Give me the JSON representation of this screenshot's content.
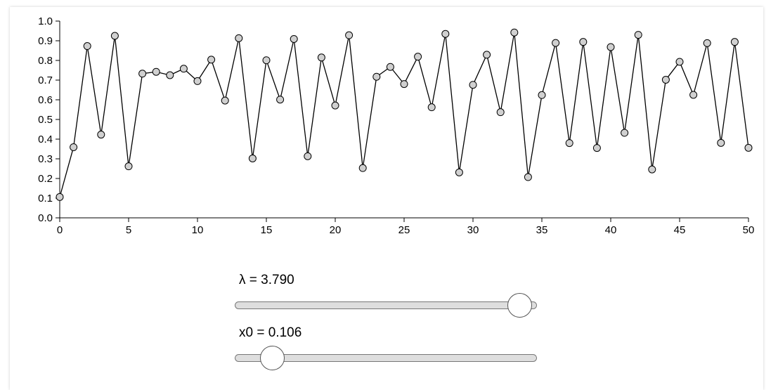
{
  "chart_data": {
    "type": "line",
    "markers": true,
    "x": [
      0,
      1,
      2,
      3,
      4,
      5,
      6,
      7,
      8,
      9,
      10,
      11,
      12,
      13,
      14,
      15,
      16,
      17,
      18,
      19,
      20,
      21,
      22,
      23,
      24,
      25,
      26,
      27,
      28,
      29,
      30,
      31,
      32,
      33,
      34,
      35,
      36,
      37,
      38,
      39,
      40,
      41,
      42,
      43,
      44,
      45,
      46,
      47,
      48,
      49,
      50
    ],
    "values": [
      0.106,
      0.359,
      0.873,
      0.423,
      0.925,
      0.262,
      0.733,
      0.742,
      0.725,
      0.758,
      0.695,
      0.804,
      0.596,
      0.913,
      0.302,
      0.801,
      0.601,
      0.909,
      0.313,
      0.815,
      0.571,
      0.928,
      0.253,
      0.717,
      0.767,
      0.68,
      0.819,
      0.562,
      0.935,
      0.231,
      0.676,
      0.829,
      0.537,
      0.942,
      0.207,
      0.624,
      0.889,
      0.38,
      0.894,
      0.355,
      0.868,
      0.432,
      0.93,
      0.246,
      0.702,
      0.793,
      0.625,
      0.888,
      0.381,
      0.894,
      0.356
    ],
    "xlim": [
      0,
      50
    ],
    "ylim": [
      0,
      1.0
    ],
    "xticks": [
      "0",
      "5",
      "10",
      "15",
      "20",
      "25",
      "30",
      "35",
      "40",
      "45",
      "50"
    ],
    "yticks": [
      "0.0",
      "0.1",
      "0.2",
      "0.3",
      "0.4",
      "0.5",
      "0.6",
      "0.7",
      "0.8",
      "0.9",
      "1.0"
    ],
    "grid": false,
    "marker_color": "#d0d0d0",
    "line_color": "#000000"
  },
  "controls": {
    "lambda": {
      "label": "λ = 3.790",
      "value": 3.79,
      "min": 0,
      "max": 4
    },
    "x0": {
      "label": "x0 = 0.106",
      "value": 0.106,
      "min": 0,
      "max": 1
    }
  }
}
